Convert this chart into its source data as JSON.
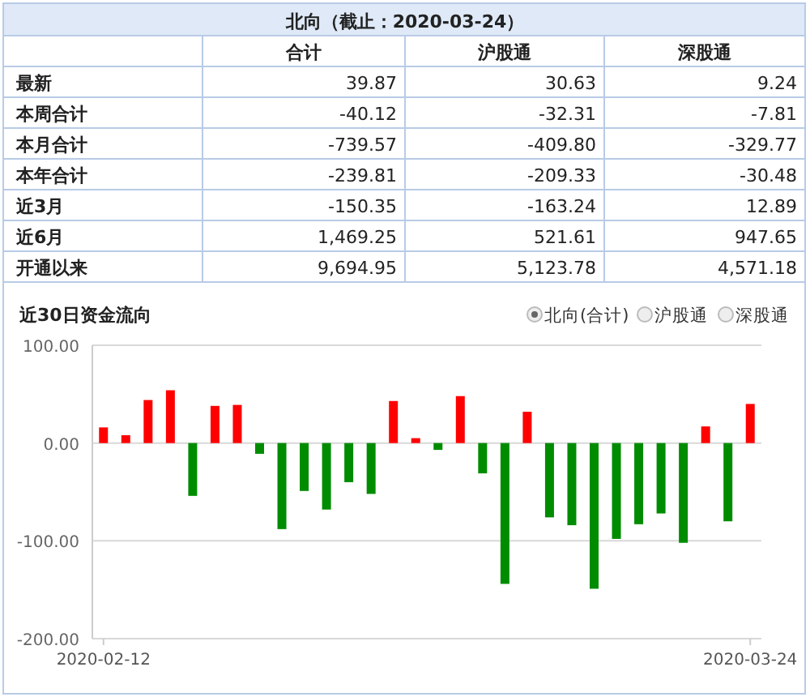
{
  "chart_data": [
    {
      "type": "other",
      "title": "北向（截止：2020-03-24）",
      "categories": [
        "合计",
        "沪股通",
        "深股通"
      ],
      "y_categories": [
        "最新",
        "本周合计",
        "本月合计",
        "本年合计",
        "近3月",
        "近6月",
        "开通以来"
      ],
      "cell_labels": [
        [
          "39.87",
          "30.63",
          "9.24"
        ],
        [
          "-40.12",
          "-32.31",
          "-7.81"
        ],
        [
          "-739.57",
          "-409.80",
          "-329.77"
        ],
        [
          "-239.81",
          "-209.33",
          "-30.48"
        ],
        [
          "-150.35",
          "-163.24",
          "12.89"
        ],
        [
          "1,469.25",
          "521.61",
          "947.65"
        ],
        [
          "9,694.95",
          "5,123.78",
          "4,571.18"
        ]
      ]
    },
    {
      "type": "bar",
      "title": "近30日资金流向",
      "categories": [
        "2020-02-12",
        null,
        null,
        null,
        null,
        null,
        null,
        null,
        null,
        null,
        null,
        null,
        null,
        null,
        null,
        null,
        null,
        null,
        null,
        null,
        null,
        null,
        null,
        null,
        null,
        null,
        null,
        null,
        null,
        "2020-03-24"
      ],
      "values": [
        16,
        8,
        44,
        54,
        -54,
        38,
        39,
        -11,
        -88,
        -49,
        -68,
        -40,
        -52,
        43,
        5,
        -7,
        48,
        -31,
        -144,
        32,
        -76,
        -84,
        -149,
        -98,
        -83,
        -72,
        -102,
        17,
        -80,
        40
      ],
      "colors": [
        "#ff0000",
        "#ff0000",
        "#ff0000",
        "#ff0000",
        "#008c00",
        "#ff0000",
        "#ff0000",
        "#008c00",
        "#008c00",
        "#008c00",
        "#008c00",
        "#008c00",
        "#008c00",
        "#ff0000",
        "#ff0000",
        "#008c00",
        "#ff0000",
        "#008c00",
        "#008c00",
        "#ff0000",
        "#008c00",
        "#008c00",
        "#008c00",
        "#008c00",
        "#008c00",
        "#008c00",
        "#008c00",
        "#ff0000",
        "#008c00",
        "#ff0000"
      ],
      "ylim": [
        -200,
        100
      ],
      "yticks": [
        {
          "value": -200,
          "label": "-200.00"
        },
        {
          "value": -100,
          "label": "-100.00"
        },
        {
          "value": 0,
          "label": "0.00"
        },
        {
          "value": 100,
          "label": "100.00"
        }
      ],
      "grid": "y",
      "annotations": [
        "北向(合计)",
        "沪股通",
        "深股通"
      ]
    }
  ]
}
